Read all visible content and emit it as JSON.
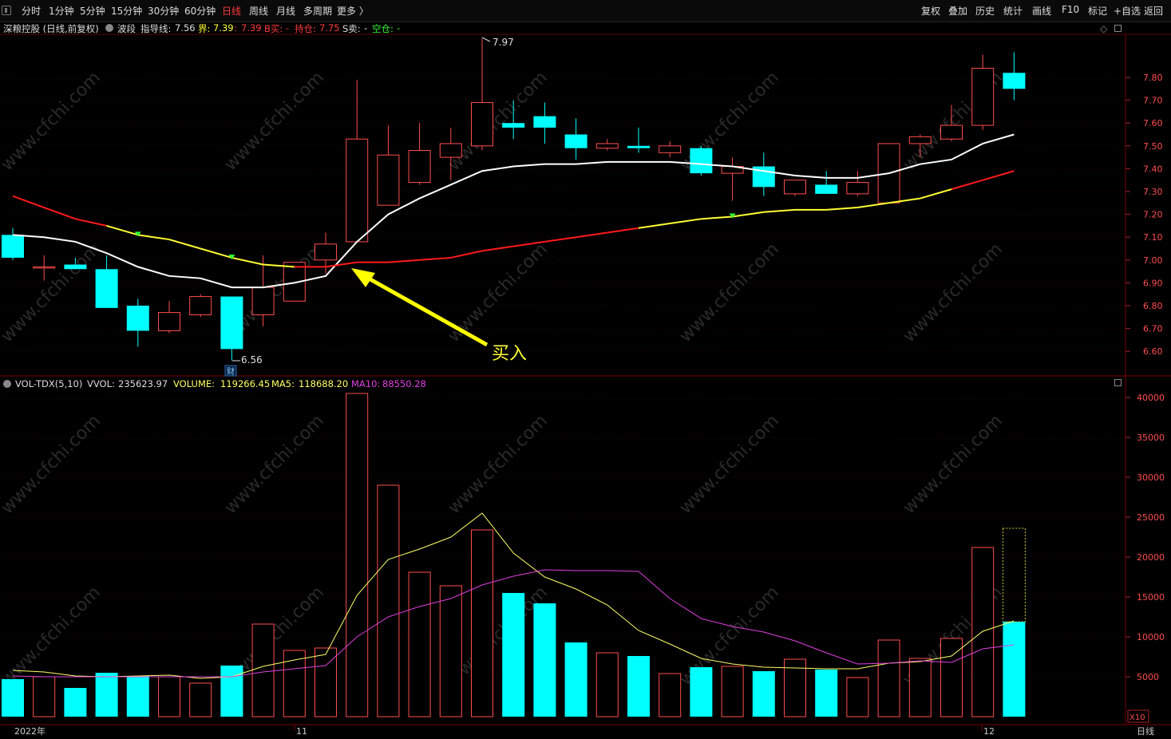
{
  "toolbar": {
    "periods": [
      "分时",
      "1分钟",
      "5分钟",
      "15分钟",
      "30分钟",
      "60分钟",
      "日线",
      "周线",
      "月线",
      "多周期",
      "更多 〉"
    ],
    "active_period": "日线",
    "right_buttons": [
      "复权",
      "叠加",
      "历史",
      "统计",
      "画线",
      "F10",
      "标记",
      "+自选",
      "返回"
    ]
  },
  "stock": {
    "title": "深粮控股 (日线,前复权)",
    "indicator": "波段",
    "guide_label": "指导线:",
    "guide_value": "7.56",
    "jie_label": "界:",
    "jie_value": "7.39",
    "jie_sep": ":",
    "jie_value2": "7.39",
    "buy_label": "B买:",
    "buy_value": "-",
    "hold_label": "持仓:",
    "hold_value": "7.75",
    "sell_label": "S卖:",
    "sell_value": "-",
    "empty_label": "空仓:",
    "empty_value": "-"
  },
  "volume": {
    "name": "VOL-TDX(5,10)",
    "vvol_label": "VVOL:",
    "vvol": "235623.97",
    "volume_label": "VOLUME:",
    "volume": "119266.45",
    "ma5_label": "MA5:",
    "ma5": "118688.20",
    "ma10_label": "MA10:",
    "ma10": "88550.28"
  },
  "annotations": {
    "buy_signal": "买入",
    "high_label": "7.97",
    "low_label": "6.56",
    "fin_marker": "财",
    "x10": "X10",
    "period_label": "日线"
  },
  "colors": {
    "up": "#ff4d4d",
    "down": "#00ffff",
    "ma_white": "#ffffff",
    "ma_yellow": "#ffff33",
    "ma_red": "#ff1a1a",
    "vol_ma5": "#ffff66",
    "vol_ma10": "#e040e0",
    "grid": "#5a0000",
    "arrow": "#ffff00"
  },
  "chart_data": {
    "type": "candlestick",
    "price_axis": {
      "ticks": [
        "7.80",
        "7.70",
        "7.60",
        "7.50",
        "7.40",
        "7.30",
        "7.20",
        "7.10",
        "7.00",
        "6.90",
        "6.80",
        "6.70",
        "6.60"
      ]
    },
    "volume_axis": {
      "ticks": [
        "40000",
        "35000",
        "30000",
        "25000",
        "20000",
        "15000",
        "10000",
        "5000"
      ]
    },
    "x_labels": [
      "2022年",
      "11",
      "12"
    ],
    "candles": [
      {
        "o": 7.11,
        "h": 7.14,
        "l": 7.0,
        "c": 7.01
      },
      {
        "o": 6.97,
        "h": 7.02,
        "l": 6.91,
        "c": 6.97
      },
      {
        "o": 6.98,
        "h": 7.01,
        "l": 6.96,
        "c": 6.96
      },
      {
        "o": 6.96,
        "h": 7.02,
        "l": 6.79,
        "c": 6.79
      },
      {
        "o": 6.8,
        "h": 6.83,
        "l": 6.62,
        "c": 6.69
      },
      {
        "o": 6.69,
        "h": 6.82,
        "l": 6.68,
        "c": 6.77
      },
      {
        "o": 6.76,
        "h": 6.85,
        "l": 6.75,
        "c": 6.84
      },
      {
        "o": 6.84,
        "h": 6.84,
        "l": 6.56,
        "c": 6.61
      },
      {
        "o": 6.76,
        "h": 7.02,
        "l": 6.71,
        "c": 6.88
      },
      {
        "o": 6.82,
        "h": 6.99,
        "l": 6.82,
        "c": 6.99
      },
      {
        "o": 7.0,
        "h": 7.12,
        "l": 6.94,
        "c": 7.07
      },
      {
        "o": 7.08,
        "h": 7.79,
        "l": 7.08,
        "c": 7.53
      },
      {
        "o": 7.24,
        "h": 7.59,
        "l": 7.24,
        "c": 7.46
      },
      {
        "o": 7.34,
        "h": 7.6,
        "l": 7.33,
        "c": 7.48
      },
      {
        "o": 7.45,
        "h": 7.58,
        "l": 7.35,
        "c": 7.51
      },
      {
        "o": 7.5,
        "h": 7.97,
        "l": 7.48,
        "c": 7.69
      },
      {
        "o": 7.6,
        "h": 7.7,
        "l": 7.53,
        "c": 7.58
      },
      {
        "o": 7.63,
        "h": 7.69,
        "l": 7.51,
        "c": 7.58
      },
      {
        "o": 7.55,
        "h": 7.62,
        "l": 7.44,
        "c": 7.49
      },
      {
        "o": 7.49,
        "h": 7.53,
        "l": 7.48,
        "c": 7.51
      },
      {
        "o": 7.5,
        "h": 7.58,
        "l": 7.47,
        "c": 7.49
      },
      {
        "o": 7.47,
        "h": 7.52,
        "l": 7.45,
        "c": 7.5
      },
      {
        "o": 7.49,
        "h": 7.5,
        "l": 7.37,
        "c": 7.38
      },
      {
        "o": 7.38,
        "h": 7.45,
        "l": 7.26,
        "c": 7.41
      },
      {
        "o": 7.41,
        "h": 7.47,
        "l": 7.28,
        "c": 7.32
      },
      {
        "o": 7.29,
        "h": 7.35,
        "l": 7.28,
        "c": 7.35
      },
      {
        "o": 7.33,
        "h": 7.39,
        "l": 7.29,
        "c": 7.29
      },
      {
        "o": 7.29,
        "h": 7.39,
        "l": 7.28,
        "c": 7.34
      },
      {
        "o": 7.25,
        "h": 7.51,
        "l": 7.25,
        "c": 7.51
      },
      {
        "o": 7.51,
        "h": 7.55,
        "l": 7.45,
        "c": 7.54
      },
      {
        "o": 7.53,
        "h": 7.68,
        "l": 7.52,
        "c": 7.59
      },
      {
        "o": 7.59,
        "h": 7.9,
        "l": 7.57,
        "c": 7.84
      },
      {
        "o": 7.82,
        "h": 7.91,
        "l": 7.7,
        "c": 7.75
      }
    ],
    "ma_white": [
      7.11,
      7.1,
      7.08,
      7.03,
      6.97,
      6.93,
      6.92,
      6.88,
      6.88,
      6.9,
      6.93,
      7.08,
      7.2,
      7.27,
      7.33,
      7.39,
      7.41,
      7.42,
      7.42,
      7.43,
      7.43,
      7.43,
      7.42,
      7.41,
      7.39,
      7.37,
      7.36,
      7.36,
      7.38,
      7.42,
      7.44,
      7.51,
      7.55
    ],
    "ma_band": [
      7.28,
      7.23,
      7.18,
      7.15,
      7.11,
      7.09,
      7.05,
      7.01,
      6.98,
      6.97,
      6.97,
      6.99,
      6.99,
      7.0,
      7.01,
      7.04,
      7.06,
      7.08,
      7.1,
      7.12,
      7.14,
      7.16,
      7.18,
      7.19,
      7.21,
      7.22,
      7.22,
      7.23,
      7.25,
      7.27,
      7.31,
      7.35,
      7.39
    ],
    "volumes": [
      4700,
      5000,
      3600,
      5500,
      5100,
      5000,
      4200,
      6400,
      11600,
      8300,
      8600,
      40500,
      29000,
      18100,
      16400,
      23400,
      15500,
      14200,
      9300,
      8000,
      7600,
      5400,
      6200,
      6300,
      5700,
      7200,
      5900,
      4900,
      9600,
      7300,
      9800,
      21200,
      11900
    ],
    "volume_projected": 23600,
    "vol_ma5": [
      5800,
      5600,
      5100,
      5000,
      5100,
      5200,
      4800,
      5000,
      6300,
      7100,
      7800,
      15200,
      19700,
      21000,
      22500,
      25500,
      20500,
      17500,
      16000,
      14000,
      10800,
      9100,
      7300,
      6600,
      6200,
      6100,
      6000,
      6000,
      6700,
      6900,
      7600,
      10700,
      12000
    ],
    "vol_ma10": [
      5100,
      5000,
      5000,
      5000,
      5000,
      5000,
      5000,
      5000,
      5600,
      6000,
      6400,
      10000,
      12500,
      13800,
      14800,
      16500,
      17600,
      18400,
      18300,
      18300,
      18200,
      14800,
      12300,
      11300,
      10600,
      9500,
      8000,
      6600,
      6700,
      7000,
      6800,
      8500,
      9000
    ]
  }
}
